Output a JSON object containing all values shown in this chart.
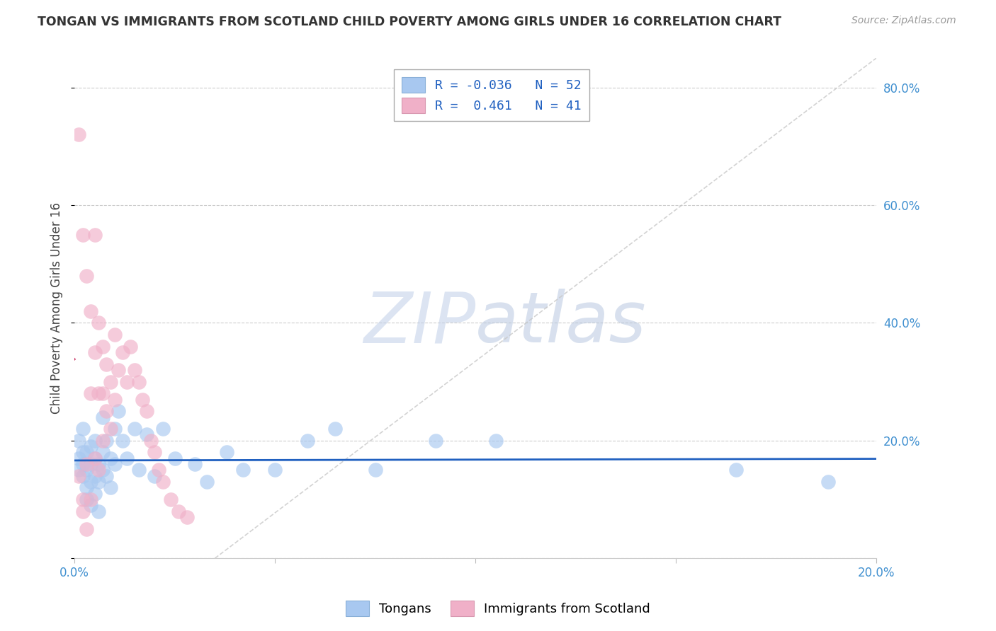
{
  "title": "TONGAN VS IMMIGRANTS FROM SCOTLAND CHILD POVERTY AMONG GIRLS UNDER 16 CORRELATION CHART",
  "source": "Source: ZipAtlas.com",
  "ylabel": "Child Poverty Among Girls Under 16",
  "xlim": [
    0.0,
    0.2
  ],
  "ylim": [
    0.0,
    0.85
  ],
  "yticks": [
    0.0,
    0.2,
    0.4,
    0.6,
    0.8
  ],
  "xticks": [
    0.0,
    0.05,
    0.1,
    0.15,
    0.2
  ],
  "ytick_labels_right": [
    "",
    "20.0%",
    "40.0%",
    "60.0%",
    "80.0%"
  ],
  "series1_label": "Tongans",
  "series2_label": "Immigrants from Scotland",
  "series1_color": "#a8c8f0",
  "series2_color": "#f0b0c8",
  "series1_line_color": "#2060c0",
  "series2_line_color": "#c83060",
  "watermark_color": "#d0dff0",
  "background_color": "#ffffff",
  "grid_color": "#cccccc",
  "title_color": "#333333",
  "source_color": "#999999",
  "right_tick_color": "#4090d0",
  "legend_R1": "R = -0.036",
  "legend_N1": "N = 52",
  "legend_R2": "R =  0.461",
  "legend_N2": "N = 41",
  "tongans_x": [
    0.001,
    0.001,
    0.001,
    0.002,
    0.002,
    0.002,
    0.002,
    0.003,
    0.003,
    0.003,
    0.003,
    0.004,
    0.004,
    0.004,
    0.004,
    0.005,
    0.005,
    0.005,
    0.005,
    0.006,
    0.006,
    0.006,
    0.007,
    0.007,
    0.007,
    0.008,
    0.008,
    0.009,
    0.009,
    0.01,
    0.01,
    0.011,
    0.012,
    0.013,
    0.015,
    0.016,
    0.018,
    0.02,
    0.022,
    0.025,
    0.03,
    0.033,
    0.038,
    0.042,
    0.05,
    0.058,
    0.065,
    0.075,
    0.09,
    0.105,
    0.165,
    0.188
  ],
  "tongans_y": [
    0.17,
    0.2,
    0.15,
    0.18,
    0.14,
    0.22,
    0.16,
    0.12,
    0.15,
    0.18,
    0.1,
    0.13,
    0.16,
    0.19,
    0.09,
    0.14,
    0.17,
    0.11,
    0.2,
    0.08,
    0.13,
    0.16,
    0.24,
    0.15,
    0.18,
    0.2,
    0.14,
    0.17,
    0.12,
    0.22,
    0.16,
    0.25,
    0.2,
    0.17,
    0.22,
    0.15,
    0.21,
    0.14,
    0.22,
    0.17,
    0.16,
    0.13,
    0.18,
    0.15,
    0.15,
    0.2,
    0.22,
    0.15,
    0.2,
    0.2,
    0.15,
    0.13
  ],
  "scotland_x": [
    0.001,
    0.001,
    0.002,
    0.002,
    0.002,
    0.003,
    0.003,
    0.003,
    0.004,
    0.004,
    0.004,
    0.005,
    0.005,
    0.005,
    0.006,
    0.006,
    0.006,
    0.007,
    0.007,
    0.007,
    0.008,
    0.008,
    0.009,
    0.009,
    0.01,
    0.01,
    0.011,
    0.012,
    0.013,
    0.014,
    0.015,
    0.016,
    0.017,
    0.018,
    0.019,
    0.02,
    0.021,
    0.022,
    0.024,
    0.026,
    0.028
  ],
  "scotland_y": [
    0.72,
    0.14,
    0.55,
    0.1,
    0.08,
    0.48,
    0.16,
    0.05,
    0.42,
    0.28,
    0.1,
    0.55,
    0.35,
    0.17,
    0.4,
    0.28,
    0.15,
    0.36,
    0.28,
    0.2,
    0.33,
    0.25,
    0.3,
    0.22,
    0.38,
    0.27,
    0.32,
    0.35,
    0.3,
    0.36,
    0.32,
    0.3,
    0.27,
    0.25,
    0.2,
    0.18,
    0.15,
    0.13,
    0.1,
    0.08,
    0.07
  ],
  "diag_line_x": [
    0.035,
    0.2
  ],
  "diag_line_y": [
    0.0,
    0.85
  ]
}
